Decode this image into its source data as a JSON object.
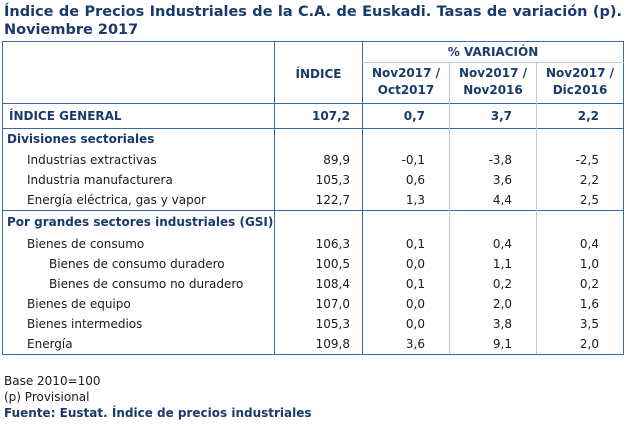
{
  "title": "Índice de Precios Industriales de la C.A. de Euskadi. Tasas de variación (p). Noviembre 2017",
  "header": {
    "variation_group": "% VARIACIÓN",
    "indice": "ÍNDICE",
    "col1_a": "Nov2017 /",
    "col1_b": "Oct2017",
    "col2_a": "Nov2017 /",
    "col2_b": "Nov2016",
    "col3_a": "Nov2017 /",
    "col3_b": "Dic2016"
  },
  "general": {
    "label": "ÍNDICE GENERAL",
    "indice": "107,2",
    "v1": "0,7",
    "v2": "3,7",
    "v3": "2,2"
  },
  "section1": {
    "title": "Divisiones sectoriales",
    "rows": [
      {
        "label": "Industrias extractivas",
        "indice": "89,9",
        "v1": "-0,1",
        "v2": "-3,8",
        "v3": "-2,5"
      },
      {
        "label": "Industria manufacturera",
        "indice": "105,3",
        "v1": "0,6",
        "v2": "3,6",
        "v3": "2,2"
      },
      {
        "label": "Energía eléctrica, gas y vapor",
        "indice": "122,7",
        "v1": "1,3",
        "v2": "4,4",
        "v3": "2,5"
      }
    ]
  },
  "section2": {
    "title": "Por grandes sectores industriales (GSI)",
    "rows": [
      {
        "label": "Bienes de consumo",
        "indice": "106,3",
        "v1": "0,1",
        "v2": "0,4",
        "v3": "0,4"
      },
      {
        "label": "Bienes de consumo duradero",
        "indice": "100,5",
        "v1": "0,0",
        "v2": "1,1",
        "v3": "1,0"
      },
      {
        "label": "Bienes de consumo no duradero",
        "indice": "108,4",
        "v1": "0,1",
        "v2": "0,2",
        "v3": "0,2"
      },
      {
        "label": "Bienes de equipo",
        "indice": "107,0",
        "v1": "0,0",
        "v2": "2,0",
        "v3": "1,6"
      },
      {
        "label": "Bienes intermedios",
        "indice": "105,3",
        "v1": "0,0",
        "v2": "3,8",
        "v3": "3,5"
      },
      {
        "label": "Energía",
        "indice": "109,8",
        "v1": "3,6",
        "v2": "9,1",
        "v3": "2,0"
      }
    ]
  },
  "footer": {
    "base": "Base 2010=100",
    "provisional": "(p) Provisional",
    "source": "Fuente: Eustat. Índice de precios industriales"
  }
}
